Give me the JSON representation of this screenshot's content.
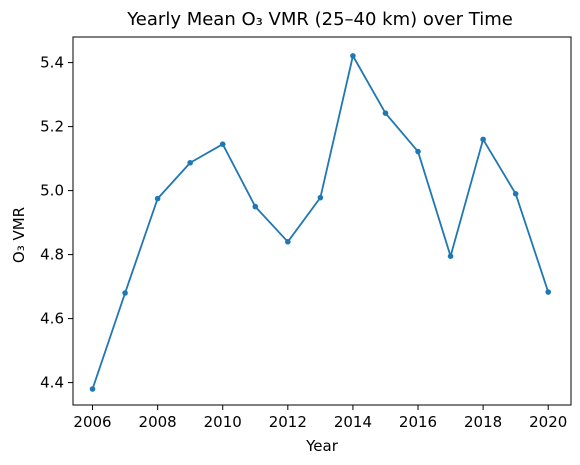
{
  "chart_data": {
    "type": "line",
    "title": "Yearly Mean O₃ VMR (25–40 km) over Time",
    "xlabel": "Year",
    "ylabel": "O₃ VMR",
    "xlim": [
      2005.4,
      2020.7
    ],
    "ylim": [
      4.33,
      5.48
    ],
    "x_ticks": [
      2006,
      2008,
      2010,
      2012,
      2014,
      2016,
      2018,
      2020
    ],
    "y_ticks": [
      4.4,
      4.6,
      4.8,
      5.0,
      5.2,
      5.4
    ],
    "grid": false,
    "series": [
      {
        "color": "#1f77b4",
        "x": [
          2006,
          2007,
          2008,
          2009,
          2010,
          2011,
          2012,
          2013,
          2014,
          2015,
          2016,
          2017,
          2018,
          2019,
          2020
        ],
        "y": [
          4.38,
          4.68,
          4.975,
          5.087,
          5.145,
          4.95,
          4.84,
          4.978,
          5.421,
          5.242,
          5.122,
          4.795,
          5.16,
          4.99,
          4.683
        ]
      }
    ]
  }
}
